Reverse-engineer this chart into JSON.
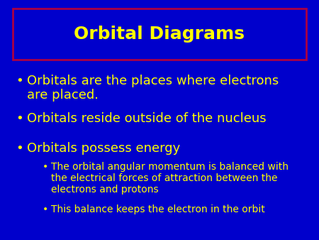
{
  "title": "Orbital Diagrams",
  "bg_color": "#0000CC",
  "title_color": "#FFFF00",
  "title_box_edge_color": "#AA0044",
  "bullet_color": "#FFFF00",
  "bullet1_line1": "Orbitals are the places where electrons",
  "bullet1_line2": "are placed.",
  "bullet2": "Orbitals reside outside of the nucleus",
  "bullet3": "Orbitals possess energy",
  "sub_bullet1_line1": "The orbital angular momentum is balanced with",
  "sub_bullet1_line2": "the electrical forces of attraction between the",
  "sub_bullet1_line3": "electrons and protons",
  "sub_bullet2": "This balance keeps the electron in the orbit",
  "bullet_symbol": "•",
  "main_font_size": 13,
  "sub_font_size": 10,
  "title_font_size": 18
}
